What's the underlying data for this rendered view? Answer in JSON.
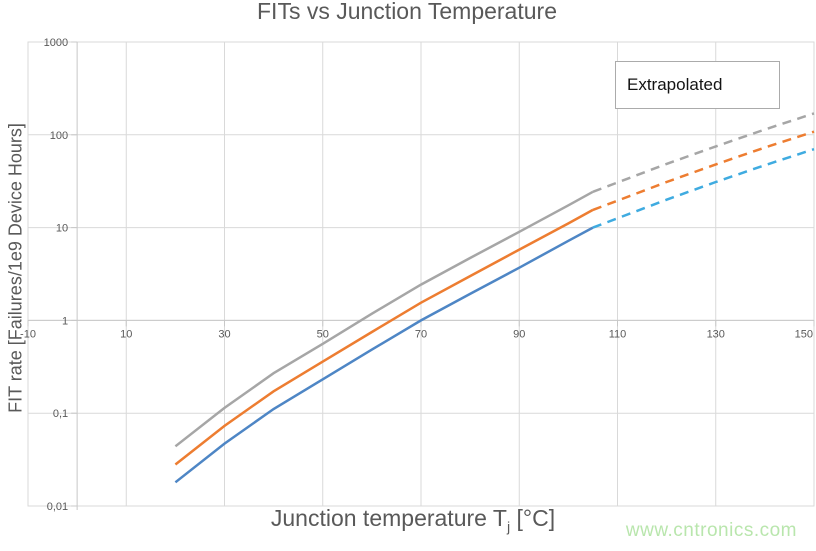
{
  "watermark": {
    "text": "www.cntronics.com",
    "color": "#b9e6ad"
  },
  "chart_data": {
    "type": "line",
    "title": "FITs vs Junction Temperature",
    "xlabel": "Junction temperature Tj [°C]",
    "xlabel_parts": {
      "main": "Junction temperature T",
      "sub": "j",
      "unit": " [°C]"
    },
    "ylabel": "FIT rate [Failures/1e9 Device Hours]",
    "xlim": [
      -10,
      150
    ],
    "ylim": [
      0.01,
      1000
    ],
    "y_scale": "log10",
    "grid": true,
    "axes_cross": {
      "x": 0,
      "y": 1
    },
    "x_ticks": [
      -10,
      10,
      30,
      50,
      70,
      90,
      110,
      130,
      150
    ],
    "y_ticks": [
      {
        "label": "1000",
        "value": 1000
      },
      {
        "label": "100",
        "value": 100
      },
      {
        "label": "10",
        "value": 10
      },
      {
        "label": "1",
        "value": 1
      },
      {
        "label": "0,1",
        "value": 0.1
      },
      {
        "label": "0,01",
        "value": 0.01
      }
    ],
    "annotation": "Extrapolated",
    "annotation_position": "top-right",
    "extrapolated_from_x": 105,
    "series": [
      {
        "name": "gray-upper",
        "color": "#A6A6A6",
        "dash_color": "#A6A6A6",
        "x": [
          20,
          30,
          40,
          50,
          60,
          70,
          80,
          90,
          100,
          105,
          110,
          120,
          130,
          140,
          150
        ],
        "y": [
          0.044,
          0.114,
          0.27,
          0.56,
          1.18,
          2.43,
          4.7,
          9.0,
          17.4,
          24.3,
          30.6,
          48.6,
          75,
          114,
          170
        ]
      },
      {
        "name": "orange-middle",
        "color": "#ED7D31",
        "dash_color": "#ED7D31",
        "x": [
          20,
          30,
          40,
          50,
          60,
          70,
          80,
          90,
          100,
          105,
          110,
          120,
          130,
          140,
          150
        ],
        "y": [
          0.028,
          0.073,
          0.172,
          0.36,
          0.75,
          1.55,
          3.0,
          5.8,
          11.1,
          15.5,
          19.5,
          31,
          48,
          73,
          108
        ]
      },
      {
        "name": "blue-lower",
        "color": "#4E86C5",
        "dash_color": "#3FABE0",
        "x": [
          20,
          30,
          40,
          50,
          60,
          70,
          80,
          90,
          100,
          105,
          110,
          120,
          130,
          140,
          150
        ],
        "y": [
          0.018,
          0.047,
          0.111,
          0.232,
          0.484,
          1.0,
          1.93,
          3.7,
          7.2,
          10,
          12.6,
          20,
          31,
          47,
          70
        ]
      }
    ]
  }
}
